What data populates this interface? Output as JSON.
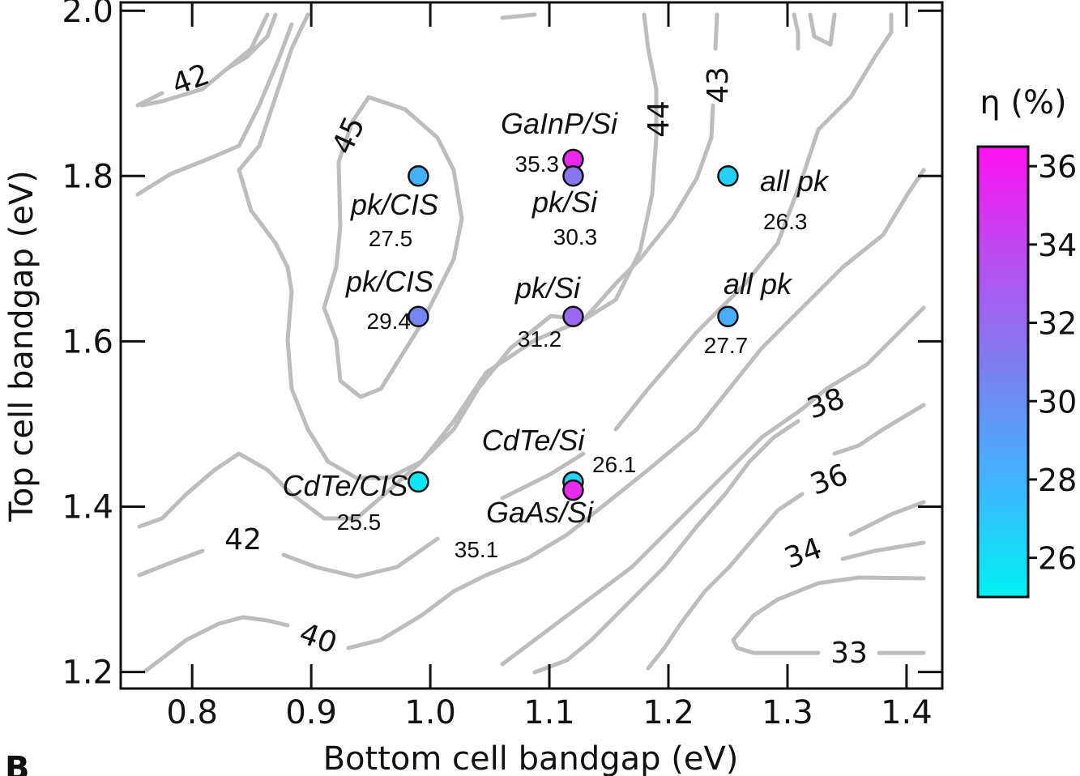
{
  "chart_data": {
    "type": "scatter",
    "xlabel": "Bottom cell bandgap (eV)",
    "ylabel": "Top cell bandgap (eV)",
    "xlim": [
      0.74,
      1.43
    ],
    "ylim": [
      1.18,
      2.01
    ],
    "xticks": [
      "0.8",
      "0.9",
      "1.0",
      "1.1",
      "1.2",
      "1.3",
      "1.4"
    ],
    "yticks": [
      "1.2",
      "1.4",
      "1.6",
      "1.8",
      "2.0"
    ],
    "colorbar": {
      "title": "η (%)",
      "range": [
        25,
        36.5
      ],
      "ticks": [
        "26",
        "28",
        "30",
        "32",
        "34",
        "36"
      ],
      "colors": [
        "#00f2f2",
        "#3fb6ff",
        "#7a80f0",
        "#a85cf0",
        "#d63af0",
        "#ff10f0"
      ]
    },
    "contour_labels": [
      "45",
      "44",
      "43",
      "42",
      "42",
      "40",
      "38",
      "36",
      "34",
      "33"
    ],
    "points": [
      {
        "name": "GaInP/Si",
        "value": "35.3",
        "x": 1.12,
        "y": 1.82,
        "eta": 35.3
      },
      {
        "name": "pk/Si",
        "value": "30.3",
        "x": 1.12,
        "y": 1.8,
        "eta": 30.3
      },
      {
        "name": "pk/CIS",
        "value": "27.5",
        "x": 0.99,
        "y": 1.8,
        "eta": 27.5
      },
      {
        "name": "all pk",
        "value": "26.3",
        "x": 1.25,
        "y": 1.8,
        "eta": 26.3
      },
      {
        "name": "pk/CIS",
        "value": "29.4",
        "x": 0.99,
        "y": 1.63,
        "eta": 29.4
      },
      {
        "name": "pk/Si",
        "value": "31.2",
        "x": 1.12,
        "y": 1.63,
        "eta": 31.2
      },
      {
        "name": "all pk",
        "value": "27.7",
        "x": 1.25,
        "y": 1.63,
        "eta": 27.7
      },
      {
        "name": "CdTe/CIS",
        "value": "25.5",
        "x": 0.99,
        "y": 1.43,
        "eta": 25.5
      },
      {
        "name": "CdTe/Si",
        "value": "26.1",
        "x": 1.12,
        "y": 1.43,
        "eta": 26.1
      },
      {
        "name": "GaAs/Si",
        "value": "35.1",
        "x": 1.12,
        "y": 1.42,
        "eta": 35.1
      }
    ],
    "grid": false
  },
  "panel_letter": "B"
}
